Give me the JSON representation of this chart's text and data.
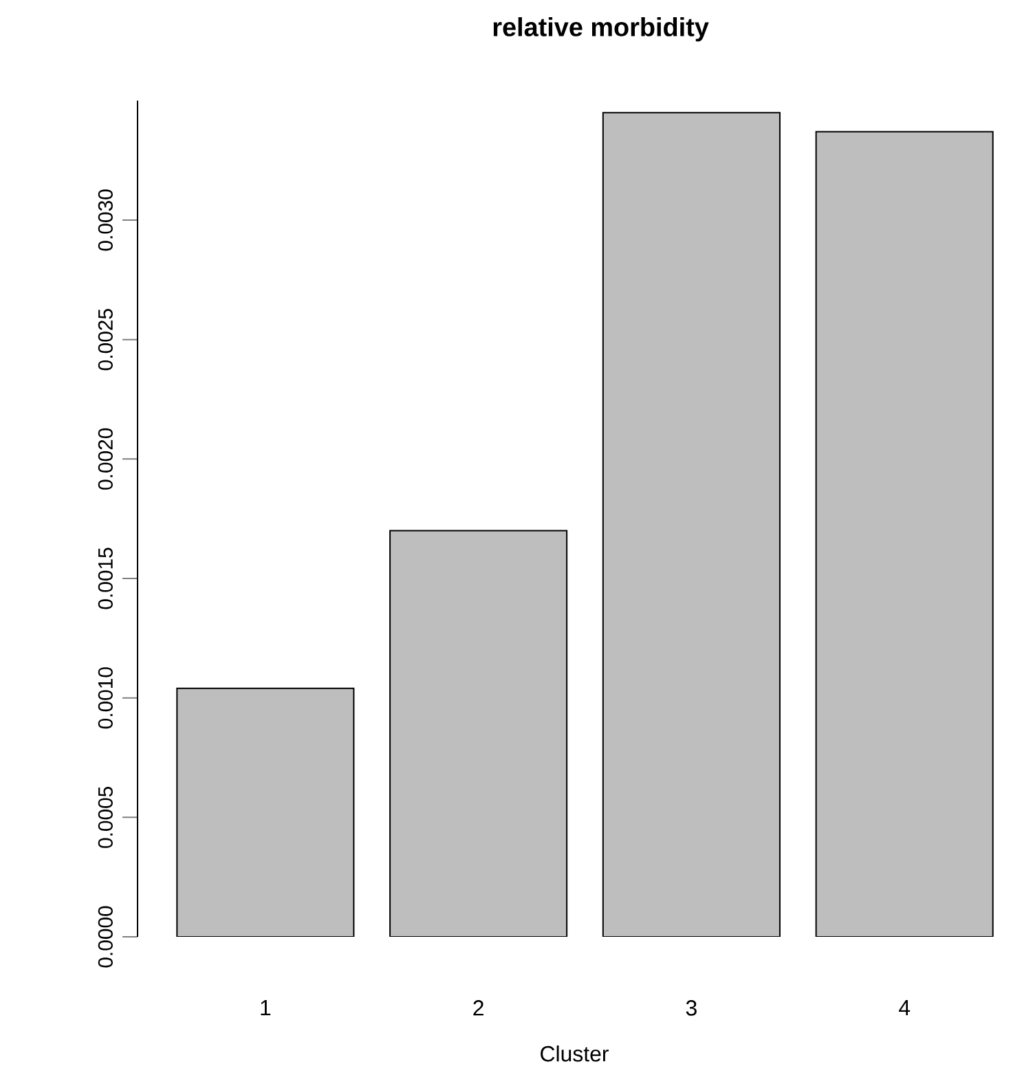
{
  "chart_data": {
    "type": "bar",
    "title": "relative morbidity",
    "xlabel": "Cluster",
    "categories": [
      "1",
      "2",
      "3",
      "4"
    ],
    "values": [
      0.00104,
      0.0017,
      0.00345,
      0.00337
    ],
    "color": "#bebebe",
    "ylim": [
      0,
      0.0035
    ],
    "yticks": [
      {
        "value": 0,
        "label": "0.0000"
      },
      {
        "value": 0.0005,
        "label": "0.0005"
      },
      {
        "value": 0.001,
        "label": "0.0010"
      },
      {
        "value": 0.0015,
        "label": "0.0015"
      },
      {
        "value": 0.002,
        "label": "0.0020"
      },
      {
        "value": 0.0025,
        "label": "0.0025"
      },
      {
        "value": 0.003,
        "label": "0.0030"
      }
    ]
  }
}
